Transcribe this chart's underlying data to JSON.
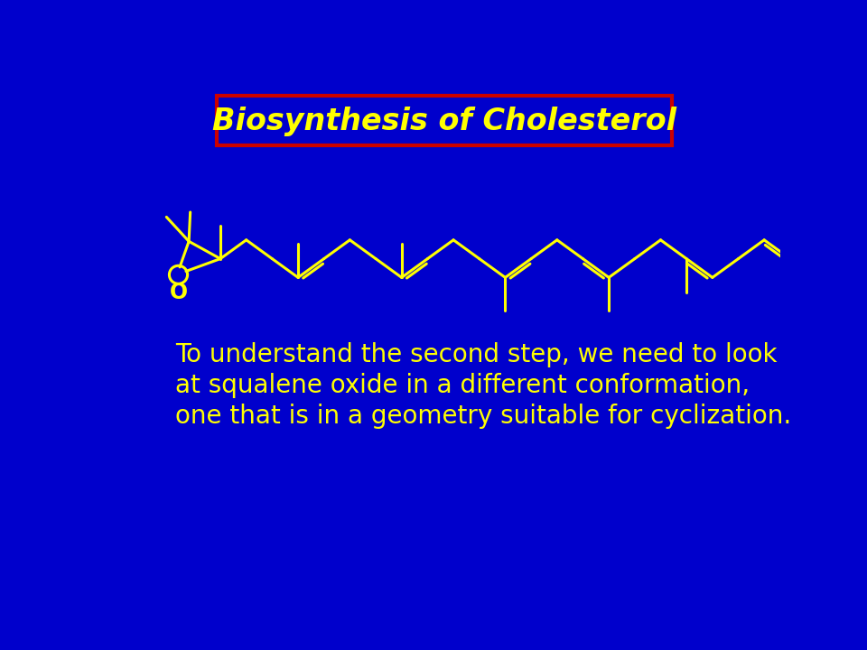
{
  "bg": "#0000CC",
  "fg": "#FFFF00",
  "red": "#CC0000",
  "title": "Biosynthesis of Cholesterol",
  "body_line1": "To understand the second step, we need to look",
  "body_line2": "at squalene oxide in a different conformation,",
  "body_line3": "one that is in a geometry suitable for cyclization.",
  "title_fs": 24,
  "body_fs": 20,
  "lw": 2.2
}
